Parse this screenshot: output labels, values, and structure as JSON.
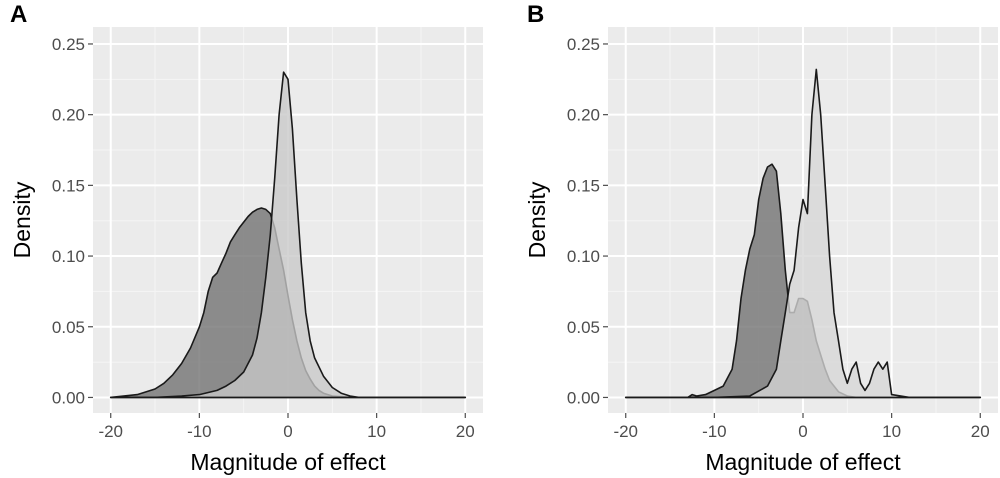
{
  "chart_data": [
    {
      "type": "area",
      "panel_label": "A",
      "xlabel": "Magnitude of effect",
      "ylabel": "Density",
      "xlim": [
        -22,
        22
      ],
      "ylim": [
        -0.011,
        0.262
      ],
      "x_ticks": [
        -20,
        -10,
        0,
        10,
        20
      ],
      "x_tick_labels": [
        "-20",
        "-10",
        "0",
        "10",
        "20"
      ],
      "y_ticks": [
        0,
        0.05,
        0.1,
        0.15,
        0.2,
        0.25
      ],
      "y_tick_labels": [
        "0.00",
        "0.05",
        "0.10",
        "0.15",
        "0.20",
        "0.25"
      ],
      "grid": true,
      "background": "#ebebeb",
      "series": [
        {
          "fill": "#6f6f6f",
          "x": [
            -20,
            -17,
            -15,
            -14,
            -13,
            -12,
            -11,
            -10,
            -9.5,
            -9,
            -8.5,
            -8,
            -7.5,
            -7,
            -6.5,
            -6,
            -5.5,
            -5,
            -4.5,
            -4,
            -3.5,
            -3,
            -2.5,
            -2,
            -1.5,
            -1,
            -0.5,
            0,
            0.5,
            1,
            1.5,
            2,
            2.5,
            3,
            3.5,
            4,
            4.5,
            5,
            6,
            7,
            8,
            10,
            20
          ],
          "y": [
            0,
            0.002,
            0.006,
            0.01,
            0.016,
            0.024,
            0.035,
            0.05,
            0.06,
            0.075,
            0.085,
            0.088,
            0.095,
            0.102,
            0.11,
            0.115,
            0.12,
            0.124,
            0.128,
            0.131,
            0.133,
            0.134,
            0.133,
            0.13,
            0.12,
            0.105,
            0.09,
            0.072,
            0.055,
            0.04,
            0.028,
            0.019,
            0.013,
            0.008,
            0.005,
            0.003,
            0.002,
            0.001,
            0.0005,
            0.0002,
            0,
            0,
            0
          ]
        },
        {
          "fill": "#c8c8c8",
          "x": [
            -20,
            -15,
            -12,
            -10,
            -8,
            -7,
            -6,
            -5,
            -4.5,
            -4,
            -3.5,
            -3,
            -2.5,
            -2,
            -1.5,
            -1,
            -0.5,
            0,
            0.5,
            1,
            1.5,
            2,
            2.5,
            3,
            4,
            5,
            6,
            7,
            8,
            10,
            20
          ],
          "y": [
            0,
            0,
            0.001,
            0.002,
            0.005,
            0.008,
            0.012,
            0.018,
            0.024,
            0.03,
            0.042,
            0.06,
            0.085,
            0.115,
            0.155,
            0.2,
            0.23,
            0.225,
            0.19,
            0.14,
            0.095,
            0.06,
            0.04,
            0.028,
            0.015,
            0.007,
            0.003,
            0.001,
            0,
            0,
            0
          ]
        }
      ]
    },
    {
      "type": "area",
      "panel_label": "B",
      "xlabel": "Magnitude of effect",
      "ylabel": "Density",
      "xlim": [
        -22,
        22
      ],
      "ylim": [
        -0.011,
        0.262
      ],
      "x_ticks": [
        -20,
        -10,
        0,
        10,
        20
      ],
      "x_tick_labels": [
        "-20",
        "-10",
        "0",
        "10",
        "20"
      ],
      "y_ticks": [
        0,
        0.05,
        0.1,
        0.15,
        0.2,
        0.25
      ],
      "y_tick_labels": [
        "0.00",
        "0.05",
        "0.10",
        "0.15",
        "0.20",
        "0.25"
      ],
      "grid": true,
      "background": "#ebebeb",
      "series": [
        {
          "fill": "#6f6f6f",
          "x": [
            -20,
            -13,
            -12.5,
            -12,
            -11,
            -10,
            -9,
            -8,
            -7.5,
            -7,
            -6.5,
            -6,
            -5.5,
            -5,
            -4.5,
            -4,
            -3.5,
            -3,
            -2.5,
            -2,
            -1.5,
            -1,
            -0.5,
            0,
            0.5,
            1,
            1.5,
            2,
            2.5,
            3,
            4,
            5,
            6,
            8,
            20
          ],
          "y": [
            0,
            0,
            0.002,
            0.001,
            0.002,
            0.005,
            0.008,
            0.02,
            0.04,
            0.07,
            0.09,
            0.105,
            0.115,
            0.14,
            0.155,
            0.163,
            0.165,
            0.16,
            0.13,
            0.09,
            0.06,
            0.06,
            0.07,
            0.07,
            0.068,
            0.055,
            0.04,
            0.03,
            0.02,
            0.012,
            0.004,
            0.001,
            0,
            0,
            0
          ]
        },
        {
          "fill": "#d6d6d6",
          "x": [
            -20,
            -10,
            -6,
            -4,
            -3,
            -2.5,
            -2,
            -1.5,
            -1,
            -0.5,
            0,
            0.5,
            1,
            1.5,
            2,
            2.5,
            3,
            3.5,
            4,
            4.5,
            5,
            5.5,
            6,
            6.5,
            7,
            7.5,
            8,
            8.5,
            9,
            9.5,
            10,
            12,
            20
          ],
          "y": [
            0,
            0,
            0.001,
            0.008,
            0.02,
            0.04,
            0.06,
            0.08,
            0.09,
            0.12,
            0.14,
            0.13,
            0.2,
            0.232,
            0.2,
            0.15,
            0.1,
            0.06,
            0.04,
            0.02,
            0.01,
            0.02,
            0.025,
            0.01,
            0.005,
            0.01,
            0.02,
            0.025,
            0.02,
            0.025,
            0.002,
            0,
            0
          ]
        }
      ]
    }
  ]
}
